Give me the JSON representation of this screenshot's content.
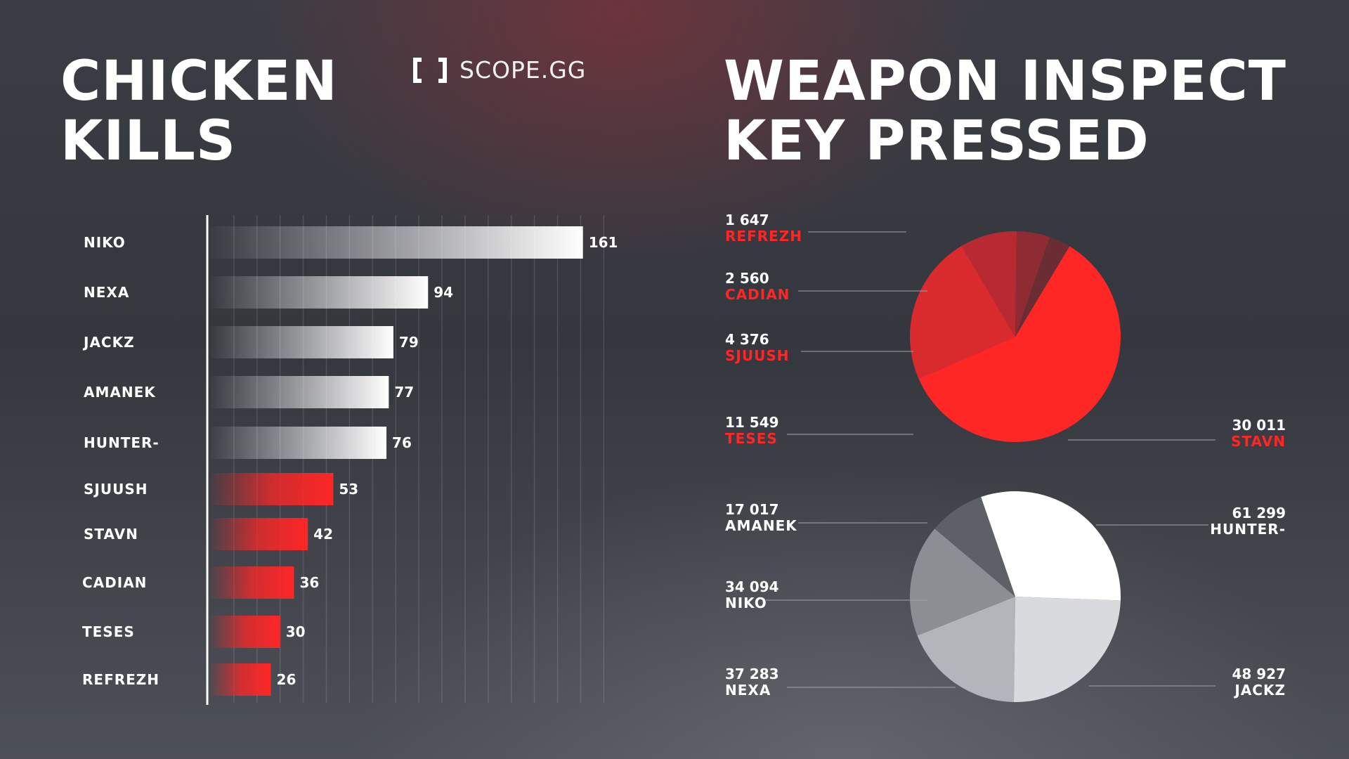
{
  "header": {
    "left_title_lines": [
      "CHICKEN",
      "KILLS"
    ],
    "right_title_lines": [
      "WEAPON INSPECT",
      "KEY PRESSED"
    ],
    "logo_text": "SCOPE.GG",
    "logo_icon": "scope-bracket-icon"
  },
  "colors": {
    "accent": "#ff2626",
    "white": "#ffffff",
    "background": "#383a42"
  },
  "chart_data": [
    {
      "type": "bar",
      "orientation": "horizontal",
      "title": "CHICKEN KILLS",
      "categories": [
        "NIKO",
        "NEXA",
        "JACKZ",
        "AMANEK",
        "HUNTER-",
        "SJUUSH",
        "STAVN",
        "CADIAN",
        "TESES",
        "REFREZH"
      ],
      "values": [
        161,
        94,
        79,
        77,
        76,
        53,
        42,
        36,
        30,
        26
      ],
      "groups": [
        "white",
        "white",
        "white",
        "white",
        "white",
        "red",
        "red",
        "red",
        "red",
        "red"
      ],
      "xlim": [
        0,
        170
      ],
      "grid": true
    },
    {
      "type": "pie",
      "title": "WEAPON INSPECT KEY PRESSED",
      "group": "red",
      "slices": [
        {
          "label": "STAVN",
          "value": 30011,
          "value_text": "30 011",
          "color": "#ff2626",
          "label_side": "right"
        },
        {
          "label": "TESES",
          "value": 11549,
          "value_text": "11 549",
          "color": "#d92a2e",
          "label_side": "left"
        },
        {
          "label": "SJUUSH",
          "value": 4376,
          "value_text": "4 376",
          "color": "#b82a31",
          "label_side": "left"
        },
        {
          "label": "CADIAN",
          "value": 2560,
          "value_text": "2 560",
          "color": "#8f2c33",
          "label_side": "left"
        },
        {
          "label": "REFREZH",
          "value": 1647,
          "value_text": "1 647",
          "color": "#6b2d34",
          "label_side": "left"
        }
      ]
    },
    {
      "type": "pie",
      "title": "WEAPON INSPECT KEY PRESSED",
      "group": "white",
      "slices": [
        {
          "label": "HUNTER-",
          "value": 61299,
          "value_text": "61 299",
          "color": "#ffffff",
          "label_side": "right"
        },
        {
          "label": "JACKZ",
          "value": 48927,
          "value_text": "48 927",
          "color": "#d9dadd",
          "label_side": "right"
        },
        {
          "label": "NEXA",
          "value": 37283,
          "value_text": "37 283",
          "color": "#b3b5ba",
          "label_side": "left"
        },
        {
          "label": "NIKO",
          "value": 34094,
          "value_text": "34 094",
          "color": "#8c8e94",
          "label_side": "left"
        },
        {
          "label": "AMANEK",
          "value": 17017,
          "value_text": "17 017",
          "color": "#5e6067",
          "label_side": "left"
        }
      ]
    }
  ]
}
